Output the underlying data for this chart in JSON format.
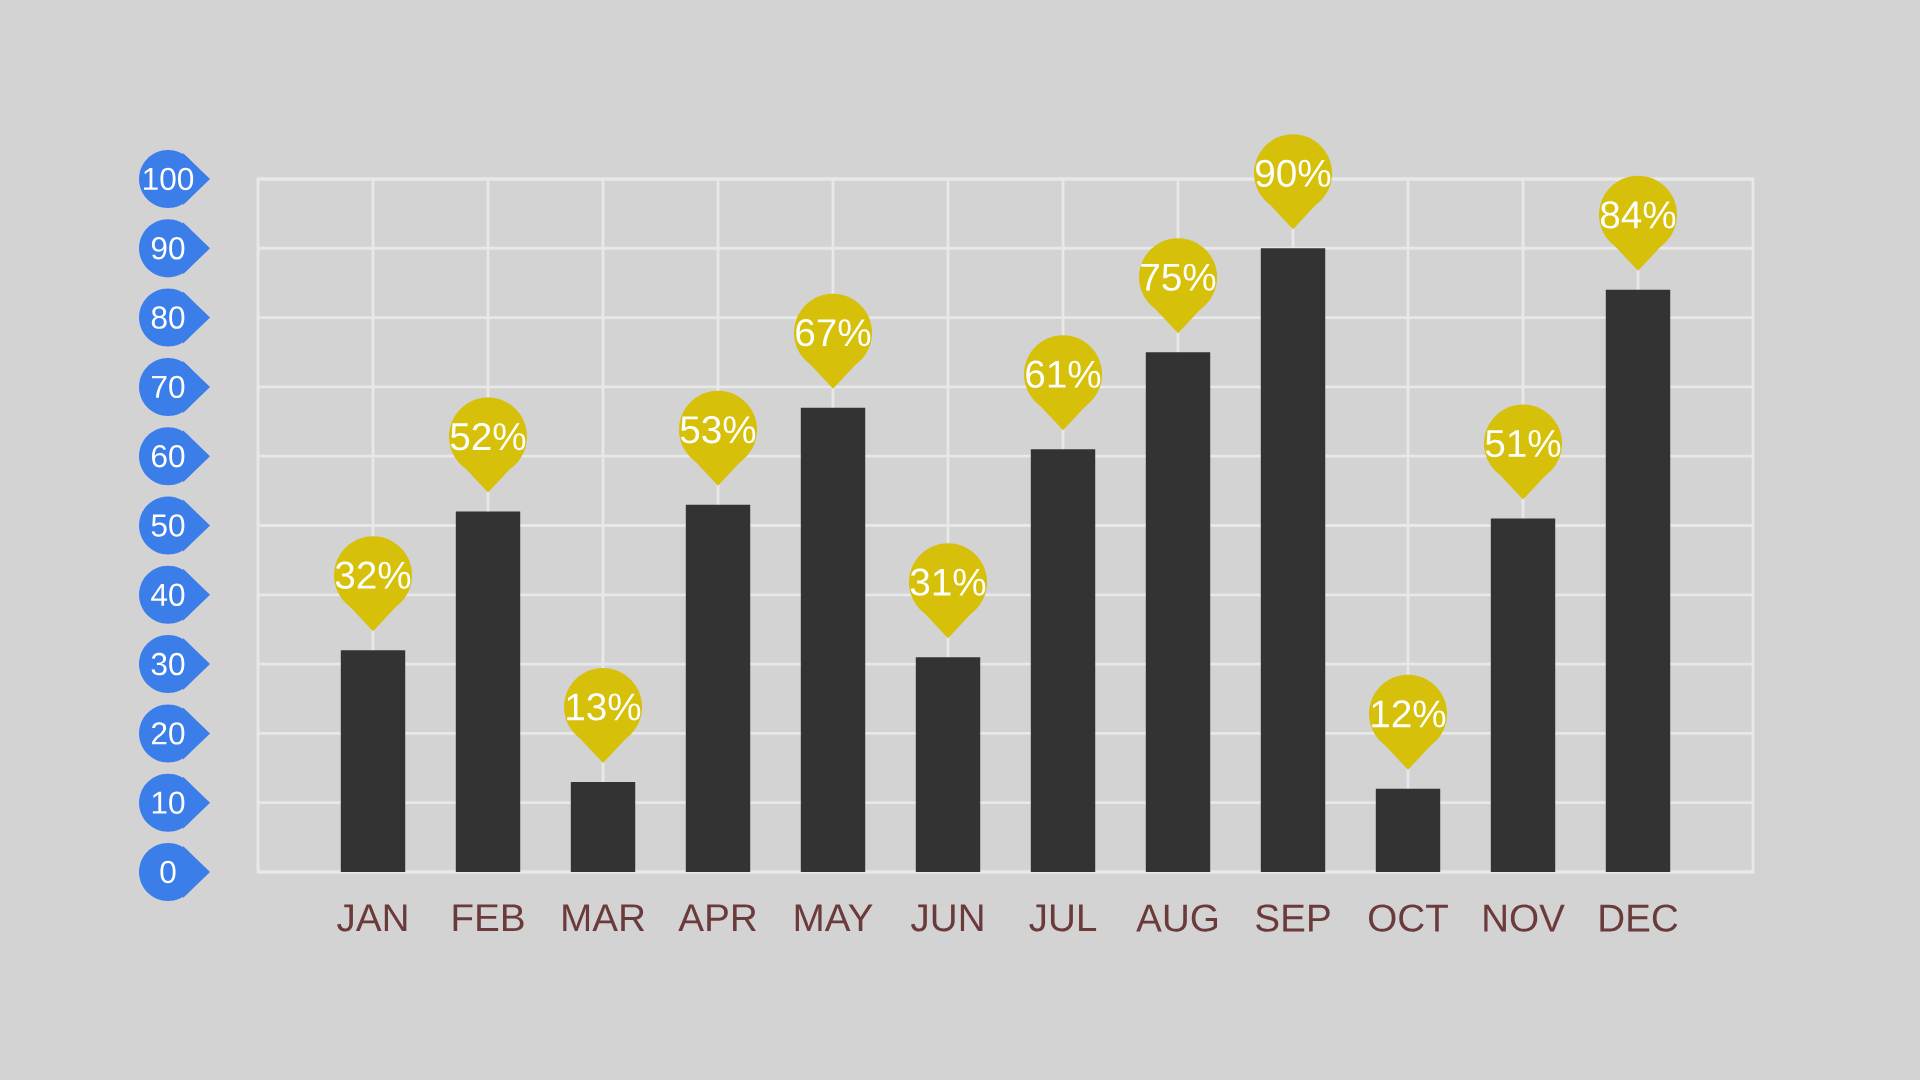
{
  "chart_data": {
    "type": "bar",
    "categories": [
      "JAN",
      "FEB",
      "MAR",
      "APR",
      "MAY",
      "JUN",
      "JUL",
      "AUG",
      "SEP",
      "OCT",
      "NOV",
      "DEC"
    ],
    "values": [
      32,
      52,
      13,
      53,
      67,
      31,
      61,
      75,
      90,
      12,
      51,
      84
    ],
    "value_labels": [
      "32%",
      "52%",
      "13%",
      "53%",
      "67%",
      "31%",
      "61%",
      "75%",
      "90%",
      "12%",
      "51%",
      "84%"
    ],
    "color": "#333333",
    "ylim": [
      0,
      100
    ],
    "yticks": [
      0,
      10,
      20,
      30,
      40,
      50,
      60,
      70,
      80,
      90,
      100
    ],
    "grid": true
  }
}
